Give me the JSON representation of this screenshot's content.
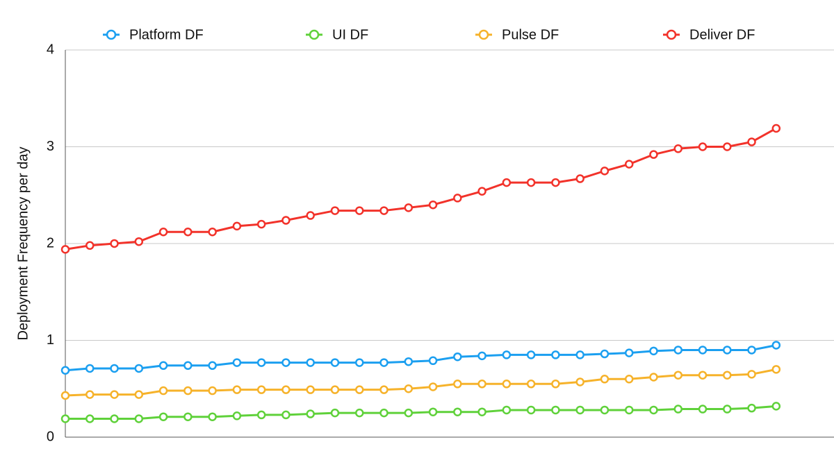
{
  "chart_data": {
    "type": "line",
    "y_label": "Deployment Frequency per day",
    "categories": [
      null,
      null,
      null,
      null,
      null,
      null,
      null,
      null,
      null,
      null,
      null,
      null,
      null,
      null,
      null,
      null,
      null,
      null,
      null,
      null,
      null,
      null,
      null,
      null,
      null,
      null,
      null,
      null,
      null,
      null
    ],
    "series": [
      {
        "name": "Platform DF",
        "color": "#1b9ff0",
        "values": [
          0.69,
          0.71,
          0.71,
          0.71,
          0.74,
          0.74,
          0.74,
          0.77,
          0.77,
          0.77,
          0.77,
          0.77,
          0.77,
          0.77,
          0.78,
          0.79,
          0.83,
          0.84,
          0.85,
          0.85,
          0.85,
          0.85,
          0.86,
          0.87,
          0.89,
          0.9,
          0.9,
          0.9,
          0.9,
          0.95
        ]
      },
      {
        "name": "UI DF",
        "color": "#5fd13a",
        "values": [
          0.19,
          0.19,
          0.19,
          0.19,
          0.21,
          0.21,
          0.21,
          0.22,
          0.23,
          0.23,
          0.24,
          0.25,
          0.25,
          0.25,
          0.25,
          0.26,
          0.26,
          0.26,
          0.28,
          0.28,
          0.28,
          0.28,
          0.28,
          0.28,
          0.28,
          0.29,
          0.29,
          0.29,
          0.3,
          0.32
        ]
      },
      {
        "name": "Pulse DF",
        "color": "#f6b22a",
        "values": [
          0.43,
          0.44,
          0.44,
          0.44,
          0.48,
          0.48,
          0.48,
          0.49,
          0.49,
          0.49,
          0.49,
          0.49,
          0.49,
          0.49,
          0.5,
          0.52,
          0.55,
          0.55,
          0.55,
          0.55,
          0.55,
          0.57,
          0.6,
          0.6,
          0.62,
          0.64,
          0.64,
          0.64,
          0.65,
          0.7
        ]
      },
      {
        "name": "Deliver DF",
        "color": "#f2322a",
        "values": [
          1.94,
          1.98,
          2.0,
          2.02,
          2.12,
          2.12,
          2.12,
          2.18,
          2.2,
          2.24,
          2.29,
          2.34,
          2.34,
          2.34,
          2.37,
          2.4,
          2.47,
          2.54,
          2.63,
          2.63,
          2.63,
          2.67,
          2.75,
          2.82,
          2.92,
          2.98,
          3.0,
          3.0,
          3.05,
          3.19
        ]
      }
    ],
    "ylim": [
      0,
      4
    ],
    "yticks": [
      0,
      1,
      2,
      3,
      4
    ],
    "grid": true,
    "legend": "top"
  }
}
